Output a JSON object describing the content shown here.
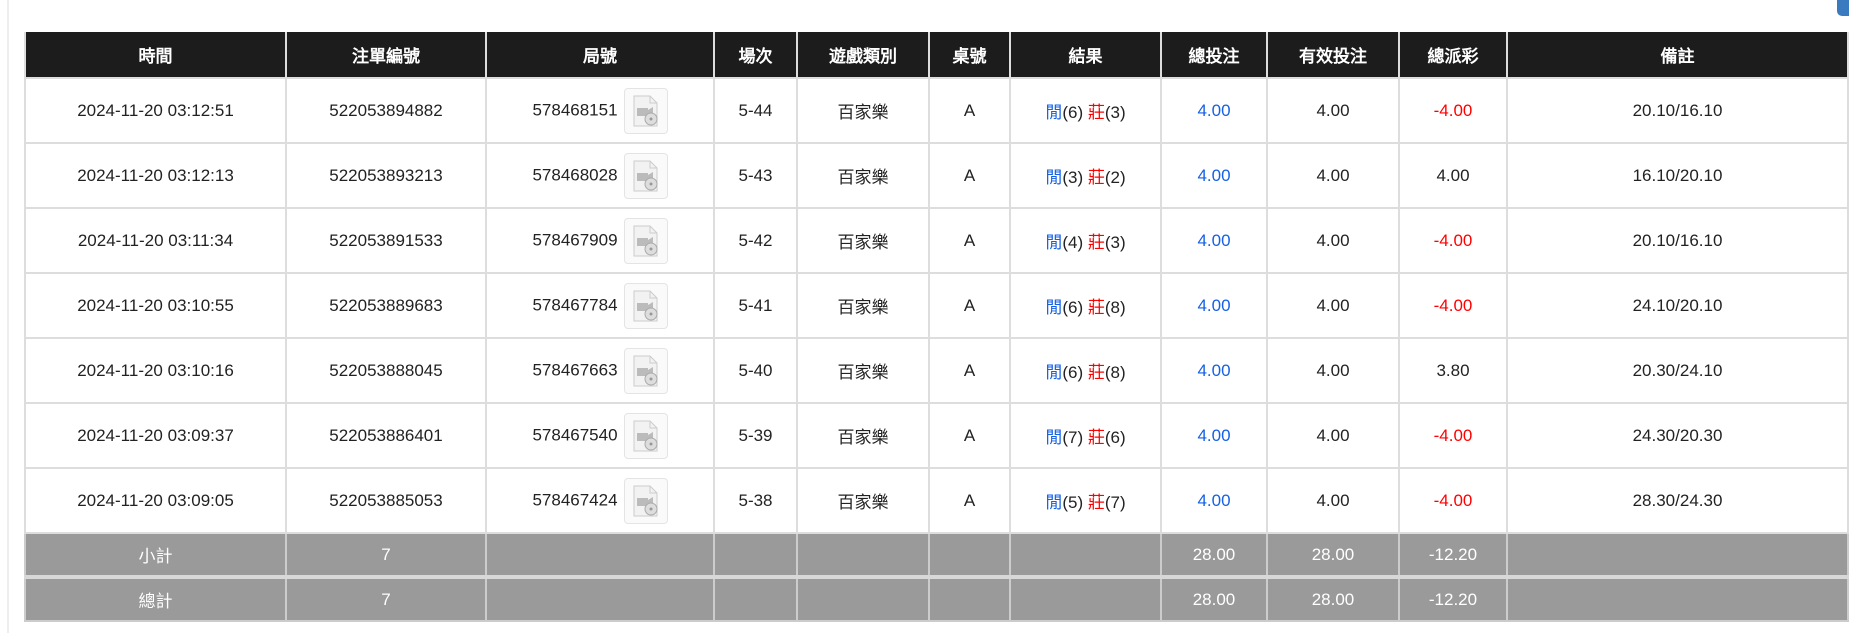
{
  "headers": [
    "時間",
    "注單編號",
    "局號",
    "場次",
    "遊戲類別",
    "桌號",
    "結果",
    "總投注",
    "有效投注",
    "總派彩",
    "備註"
  ],
  "rows": [
    {
      "time": "2024-11-20 03:12:51",
      "bet_id": "522053894882",
      "round": "578468151",
      "shoe": "5-44",
      "game": "百家樂",
      "table": "A",
      "player": "閒",
      "player_pts": "(6)",
      "banker": "莊",
      "banker_pts": "(3)",
      "total_bet": "4.00",
      "valid_bet": "4.00",
      "payout": "-4.00",
      "payout_neg": true,
      "note": "20.10/16.10"
    },
    {
      "time": "2024-11-20 03:12:13",
      "bet_id": "522053893213",
      "round": "578468028",
      "shoe": "5-43",
      "game": "百家樂",
      "table": "A",
      "player": "閒",
      "player_pts": "(3)",
      "banker": "莊",
      "banker_pts": "(2)",
      "total_bet": "4.00",
      "valid_bet": "4.00",
      "payout": "4.00",
      "payout_neg": false,
      "note": "16.10/20.10"
    },
    {
      "time": "2024-11-20 03:11:34",
      "bet_id": "522053891533",
      "round": "578467909",
      "shoe": "5-42",
      "game": "百家樂",
      "table": "A",
      "player": "閒",
      "player_pts": "(4)",
      "banker": "莊",
      "banker_pts": "(3)",
      "total_bet": "4.00",
      "valid_bet": "4.00",
      "payout": "-4.00",
      "payout_neg": true,
      "note": "20.10/16.10"
    },
    {
      "time": "2024-11-20 03:10:55",
      "bet_id": "522053889683",
      "round": "578467784",
      "shoe": "5-41",
      "game": "百家樂",
      "table": "A",
      "player": "閒",
      "player_pts": "(6)",
      "banker": "莊",
      "banker_pts": "(8)",
      "total_bet": "4.00",
      "valid_bet": "4.00",
      "payout": "-4.00",
      "payout_neg": true,
      "note": "24.10/20.10"
    },
    {
      "time": "2024-11-20 03:10:16",
      "bet_id": "522053888045",
      "round": "578467663",
      "shoe": "5-40",
      "game": "百家樂",
      "table": "A",
      "player": "閒",
      "player_pts": "(6)",
      "banker": "莊",
      "banker_pts": "(8)",
      "total_bet": "4.00",
      "valid_bet": "4.00",
      "payout": "3.80",
      "payout_neg": false,
      "note": "20.30/24.10"
    },
    {
      "time": "2024-11-20 03:09:37",
      "bet_id": "522053886401",
      "round": "578467540",
      "shoe": "5-39",
      "game": "百家樂",
      "table": "A",
      "player": "閒",
      "player_pts": "(7)",
      "banker": "莊",
      "banker_pts": "(6)",
      "total_bet": "4.00",
      "valid_bet": "4.00",
      "payout": "-4.00",
      "payout_neg": true,
      "note": "24.30/20.30"
    },
    {
      "time": "2024-11-20 03:09:05",
      "bet_id": "522053885053",
      "round": "578467424",
      "shoe": "5-38",
      "game": "百家樂",
      "table": "A",
      "player": "閒",
      "player_pts": "(5)",
      "banker": "莊",
      "banker_pts": "(7)",
      "total_bet": "4.00",
      "valid_bet": "4.00",
      "payout": "-4.00",
      "payout_neg": true,
      "note": "28.30/24.30"
    }
  ],
  "subtotal": {
    "label": "小計",
    "count": "7",
    "total_bet": "28.00",
    "valid_bet": "28.00",
    "payout": "-12.20"
  },
  "total": {
    "label": "總計",
    "count": "7",
    "total_bet": "28.00",
    "valid_bet": "28.00",
    "payout": "-12.20"
  },
  "colors": {
    "header_bg": "#1c1c1c",
    "player": "#1560e6",
    "banker": "#ff0000",
    "negative": "#ff0000",
    "summary_bg": "#9a9a9a"
  },
  "icons": {
    "replay": "video-file-icon"
  }
}
